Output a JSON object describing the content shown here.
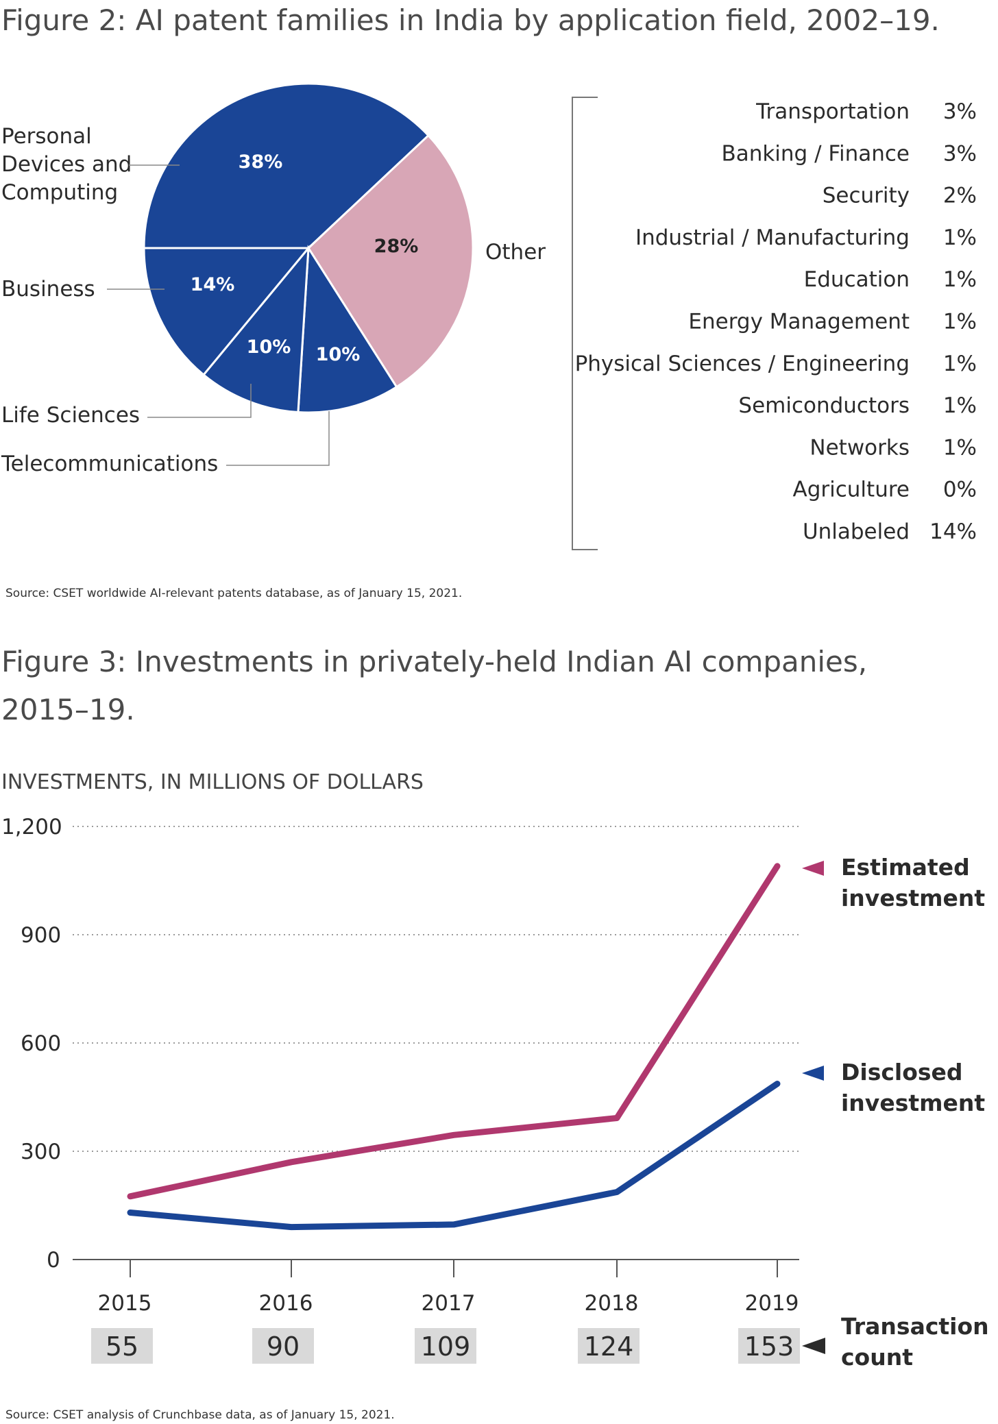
{
  "figure2": {
    "title": "Figure 2: AI patent families in India by application field, 2002–19.",
    "source": "Source: CSET worldwide AI-relevant patents database, as of January 15, 2021.",
    "chart_data": {
      "type": "pie",
      "slices": [
        {
          "label": "Personal Devices and Computing",
          "label_lines": [
            "Personal",
            "Devices and",
            "Computing"
          ],
          "value": 38,
          "display": "38%",
          "color": "#1a4596"
        },
        {
          "label": "Other",
          "label_lines": [
            "Other"
          ],
          "value": 28,
          "display": "28%",
          "color": "#d8a6b6"
        },
        {
          "label": "Telecommunications",
          "label_lines": [
            "Telecommunications"
          ],
          "value": 10,
          "display": "10%",
          "color": "#1a4596"
        },
        {
          "label": "Life Sciences",
          "label_lines": [
            "Life Sciences"
          ],
          "value": 10,
          "display": "10%",
          "color": "#1a4596"
        },
        {
          "label": "Business",
          "label_lines": [
            "Business"
          ],
          "value": 14,
          "display": "14%",
          "color": "#1a4596"
        }
      ],
      "other_breakdown": [
        {
          "label": "Transportation",
          "value": "3%"
        },
        {
          "label": "Banking / Finance",
          "value": "3%"
        },
        {
          "label": "Security",
          "value": "2%"
        },
        {
          "label": "Industrial / Manufacturing",
          "value": "1%"
        },
        {
          "label": "Education",
          "value": "1%"
        },
        {
          "label": "Energy Management",
          "value": "1%"
        },
        {
          "label": "Physical Sciences / Engineering",
          "value": "1%"
        },
        {
          "label": "Semiconductors",
          "value": "1%"
        },
        {
          "label": "Networks",
          "value": "1%"
        },
        {
          "label": "Agriculture",
          "value": "0%"
        },
        {
          "label": "Unlabeled",
          "value": "14%"
        }
      ]
    }
  },
  "figure3": {
    "title_lines": [
      "Figure 3: Investments in privately-held Indian AI companies,",
      "2015–19."
    ],
    "source": "Source: CSET analysis of Crunchbase data, as of January 15, 2021.",
    "chart_data": {
      "type": "line",
      "ylabel": "INVESTMENTS, IN MILLIONS OF DOLLARS",
      "ylim": [
        0,
        1200
      ],
      "yticks": [
        0,
        300,
        600,
        900,
        1200
      ],
      "ytick_labels": [
        "0",
        "300",
        "600",
        "900",
        "1,200"
      ],
      "grid": "dotted horizontal",
      "categories": [
        "2015",
        "2016",
        "2017",
        "2018",
        "2019"
      ],
      "series": [
        {
          "name": "Estimated investment",
          "name_lines": [
            "Estimated",
            "investment"
          ],
          "color": "#b0386e",
          "values": [
            175,
            270,
            345,
            392,
            1090
          ]
        },
        {
          "name": "Disclosed investment",
          "name_lines": [
            "Disclosed",
            "investment"
          ],
          "color": "#1a4596",
          "values": [
            130,
            90,
            97,
            187,
            487
          ]
        }
      ],
      "transaction_count": {
        "label_lines": [
          "Transaction",
          "count"
        ],
        "values": [
          "55",
          "90",
          "109",
          "124",
          "153"
        ]
      }
    }
  }
}
